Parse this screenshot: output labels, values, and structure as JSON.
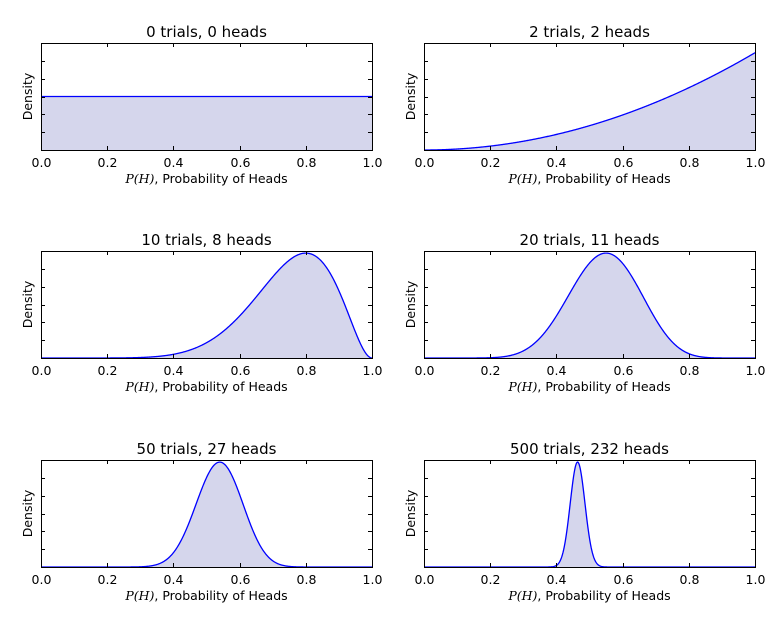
{
  "chart_data": [
    {
      "type": "area",
      "title": "0 trials, 0 heads",
      "trials": 0,
      "heads": 0,
      "xlabel_math": "P(H)",
      "xlabel_text": ", Probability of Heads",
      "ylabel": "Density",
      "xlim": [
        0.0,
        1.0
      ],
      "xticks": [
        "0.0",
        "0.2",
        "0.4",
        "0.6",
        "0.8",
        "1.0"
      ],
      "series": [
        {
          "distribution": "Beta(heads+1, trials-heads+1)"
        }
      ]
    },
    {
      "type": "area",
      "title": "2 trials, 2 heads",
      "trials": 2,
      "heads": 2,
      "xlabel_math": "P(H)",
      "xlabel_text": ", Probability of Heads",
      "ylabel": "Density",
      "xlim": [
        0.0,
        1.0
      ],
      "xticks": [
        "0.0",
        "0.2",
        "0.4",
        "0.6",
        "0.8",
        "1.0"
      ],
      "series": [
        {
          "distribution": "Beta(heads+1, trials-heads+1)"
        }
      ]
    },
    {
      "type": "area",
      "title": "10 trials, 8 heads",
      "trials": 10,
      "heads": 8,
      "xlabel_math": "P(H)",
      "xlabel_text": ", Probability of Heads",
      "ylabel": "Density",
      "xlim": [
        0.0,
        1.0
      ],
      "xticks": [
        "0.0",
        "0.2",
        "0.4",
        "0.6",
        "0.8",
        "1.0"
      ],
      "series": [
        {
          "distribution": "Beta(heads+1, trials-heads+1)"
        }
      ]
    },
    {
      "type": "area",
      "title": "20 trials, 11 heads",
      "trials": 20,
      "heads": 11,
      "xlabel_math": "P(H)",
      "xlabel_text": ", Probability of Heads",
      "ylabel": "Density",
      "xlim": [
        0.0,
        1.0
      ],
      "xticks": [
        "0.0",
        "0.2",
        "0.4",
        "0.6",
        "0.8",
        "1.0"
      ],
      "series": [
        {
          "distribution": "Beta(heads+1, trials-heads+1)"
        }
      ]
    },
    {
      "type": "area",
      "title": "50 trials, 27 heads",
      "trials": 50,
      "heads": 27,
      "xlabel_math": "P(H)",
      "xlabel_text": ", Probability of Heads",
      "ylabel": "Density",
      "xlim": [
        0.0,
        1.0
      ],
      "xticks": [
        "0.0",
        "0.2",
        "0.4",
        "0.6",
        "0.8",
        "1.0"
      ],
      "series": [
        {
          "distribution": "Beta(heads+1, trials-heads+1)"
        }
      ]
    },
    {
      "type": "area",
      "title": "500 trials, 232 heads",
      "trials": 500,
      "heads": 232,
      "xlabel_math": "P(H)",
      "xlabel_text": ", Probability of Heads",
      "ylabel": "Density",
      "xlim": [
        0.0,
        1.0
      ],
      "xticks": [
        "0.0",
        "0.2",
        "0.4",
        "0.6",
        "0.8",
        "1.0"
      ],
      "series": [
        {
          "distribution": "Beta(heads+1, trials-heads+1)"
        }
      ]
    }
  ],
  "style": {
    "line_color": "#0000ff",
    "fill_color": "#d5d6ec",
    "axes_color": "#000000",
    "grid": false,
    "legend": "none"
  }
}
